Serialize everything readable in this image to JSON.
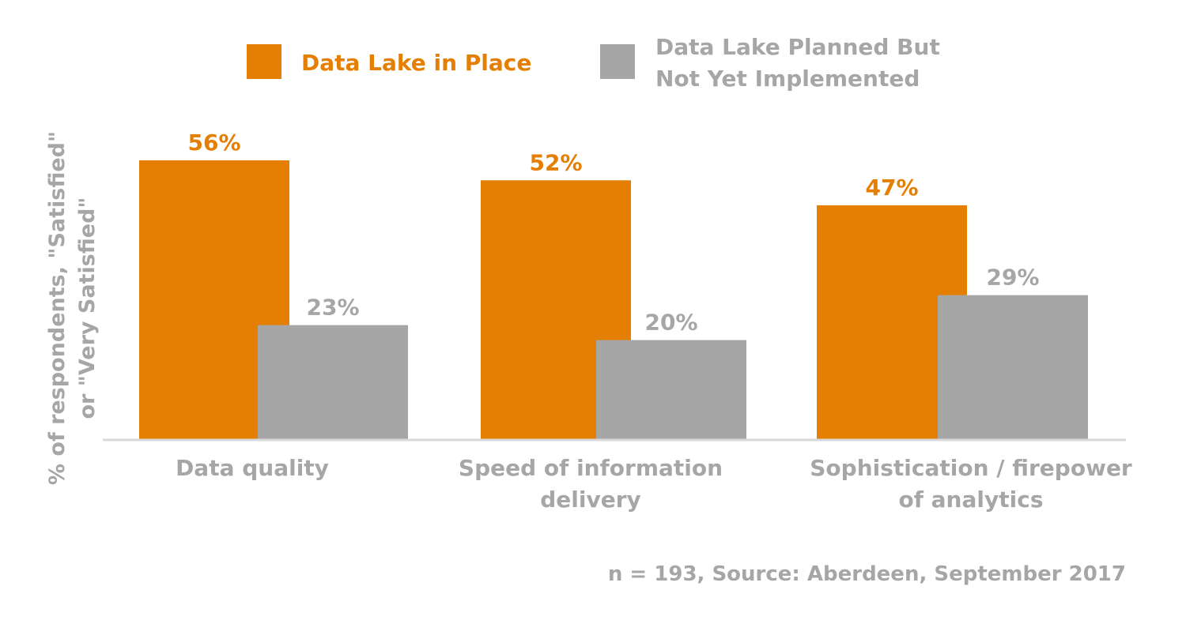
{
  "chart_data": {
    "type": "bar",
    "title": "",
    "ylabel": [
      "% of respondents, \"Satisfied\"",
      "or \"Very Satisfied\""
    ],
    "xlabel": "",
    "categories": [
      [
        "Data quality"
      ],
      [
        "Speed of information",
        "delivery"
      ],
      [
        "Sophistication / firepower",
        "of analytics"
      ]
    ],
    "series": [
      {
        "name": [
          "Data Lake in Place"
        ],
        "color": "#e57f04",
        "values": [
          56,
          52,
          47
        ],
        "labels": [
          "56%",
          "52%",
          "47%"
        ]
      },
      {
        "name": [
          "Data Lake Planned But",
          "Not Yet Implemented"
        ],
        "color": "#a6a6a6",
        "values": [
          23,
          20,
          29
        ],
        "labels": [
          "23%",
          "20%",
          "29%"
        ]
      }
    ],
    "ylim": [
      0,
      100
    ],
    "grid": false,
    "legend": "top"
  },
  "source_note": "n = 193, Source: Aberdeen, September 2017"
}
